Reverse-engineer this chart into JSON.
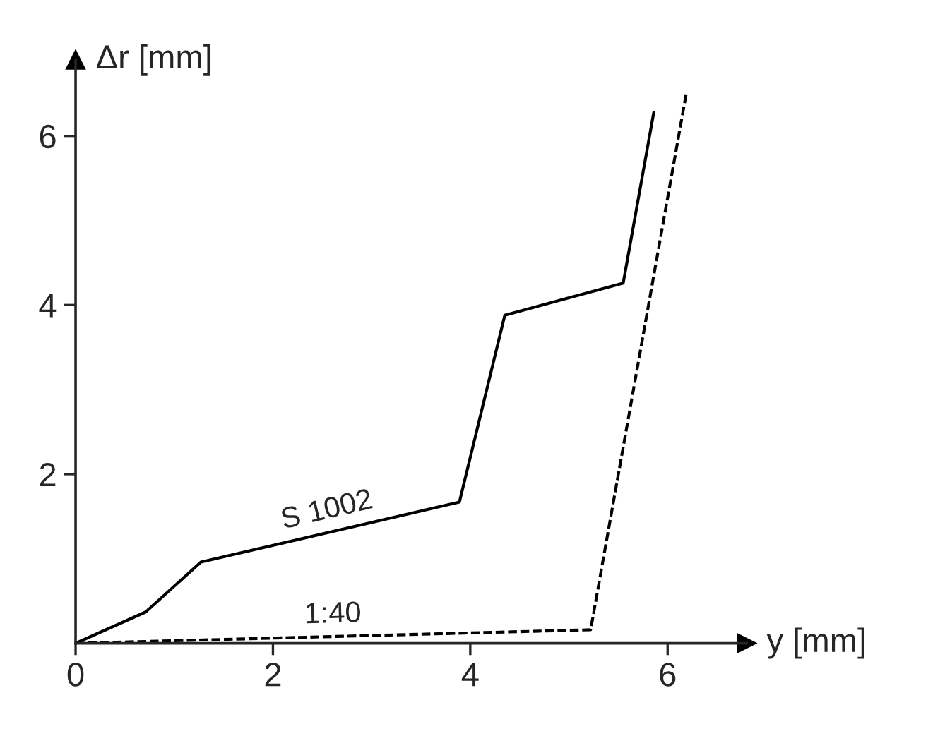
{
  "chart_data": {
    "type": "line",
    "xlabel": "y [mm]",
    "ylabel": "Δr [mm]",
    "xlim": [
      0,
      6.8
    ],
    "ylim": [
      0,
      6.9
    ],
    "xticks": [
      0,
      2,
      4,
      6
    ],
    "yticks": [
      2,
      4,
      6
    ],
    "grid": false,
    "legend": false,
    "marker": "none",
    "series": [
      {
        "name": "S 1002",
        "color": "#000000",
        "line_style": "solid",
        "x": [
          0,
          0.71,
          1.27,
          3.89,
          4.35,
          5.55,
          5.86
        ],
        "values": [
          0,
          0.37,
          0.96,
          1.67,
          3.88,
          4.26,
          6.28
        ]
      },
      {
        "name": "1:40",
        "color": "#000000",
        "line_style": "dashed",
        "x": [
          0,
          5.22,
          6.19
        ],
        "values": [
          0,
          0.16,
          6.51
        ]
      }
    ]
  }
}
